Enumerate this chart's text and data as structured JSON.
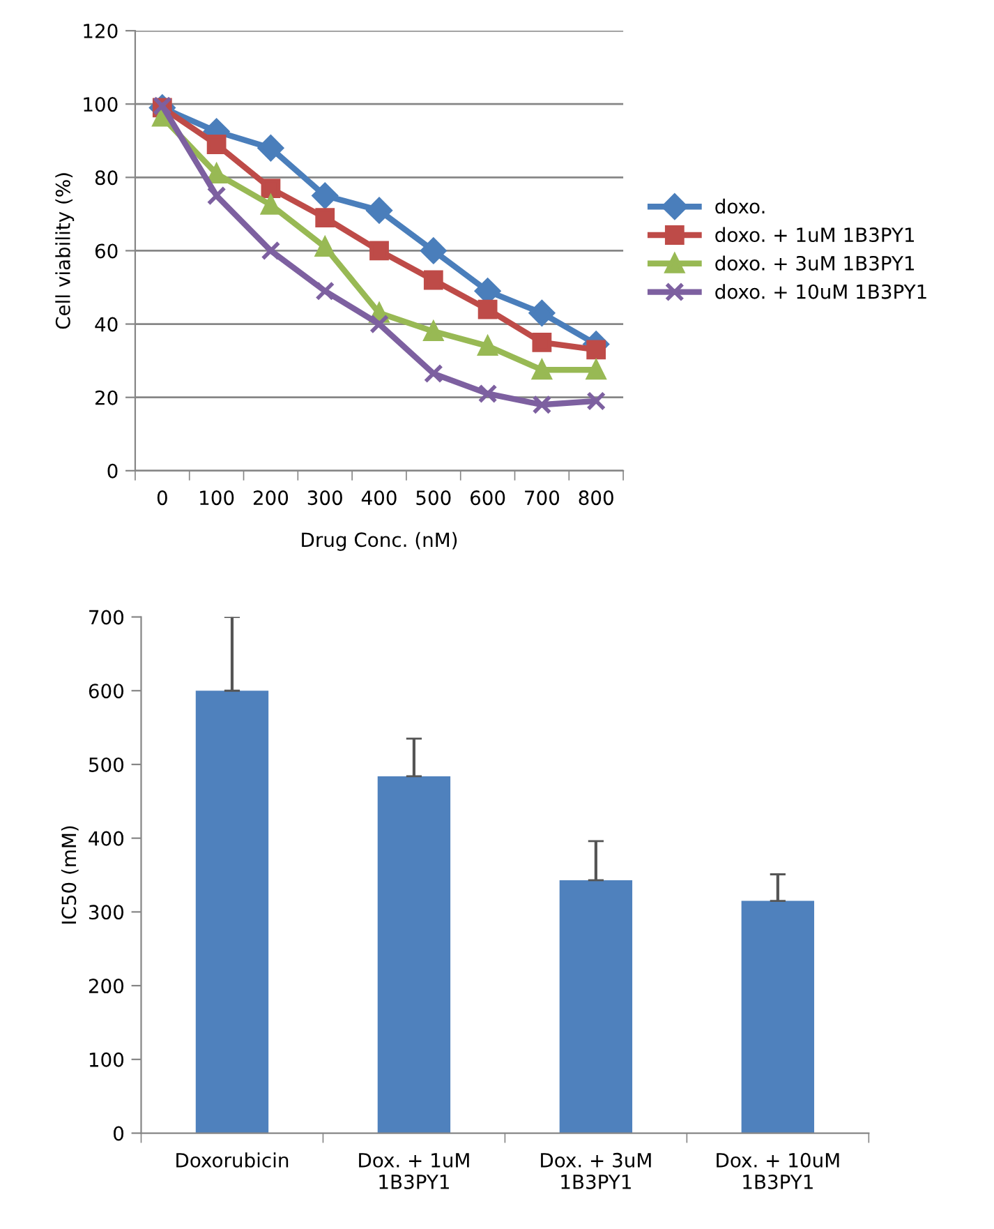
{
  "chart_data": [
    {
      "type": "line",
      "xlabel": "Drug Conc. (nM)",
      "ylabel": "Cell viability (%)",
      "categories": [
        "0",
        "100",
        "200",
        "300",
        "400",
        "500",
        "600",
        "700",
        "800"
      ],
      "ylim": [
        0,
        120
      ],
      "yticks": [
        0,
        20,
        40,
        60,
        80,
        100,
        120
      ],
      "grid": "y",
      "legend": "right",
      "series": [
        {
          "name": "doxo.",
          "color": "#4a7ebb",
          "marker": "diamond",
          "values": [
            99,
            92.5,
            88,
            75,
            71,
            60,
            49,
            43,
            34.5
          ]
        },
        {
          "name": "doxo. + 1uM 1B3PY1",
          "color": "#be4b48",
          "marker": "square",
          "values": [
            99,
            89,
            77,
            69,
            60,
            52,
            44,
            35,
            33
          ]
        },
        {
          "name": "doxo. + 3uM 1B3PY1",
          "color": "#98b954",
          "marker": "triangle",
          "values": [
            96.5,
            81,
            72.5,
            61,
            43,
            38,
            34,
            27.5,
            27.5
          ]
        },
        {
          "name": "doxo. + 10uM 1B3PY1",
          "color": "#7d60a0",
          "marker": "cross",
          "values": [
            99.5,
            75,
            60,
            49,
            40,
            26.5,
            21,
            18,
            19
          ]
        }
      ]
    },
    {
      "type": "bar",
      "ylabel": "IC50 (mM)",
      "categories": [
        "Doxorubicin",
        "Dox. + 1uM\n1B3PY1",
        "Dox. + 3uM\n1B3PY1",
        "Dox. + 10uM\n1B3PY1"
      ],
      "ylim": [
        0,
        700
      ],
      "yticks": [
        0,
        100,
        200,
        300,
        400,
        500,
        600,
        700
      ],
      "grid": false,
      "legend": false,
      "series": [
        {
          "color": "#4f81bd",
          "values": [
            600,
            484,
            343,
            315
          ],
          "errors": [
            [
              600,
              700
            ],
            [
              484,
              535
            ],
            [
              343,
              396
            ],
            [
              315,
              351
            ]
          ]
        }
      ]
    }
  ]
}
